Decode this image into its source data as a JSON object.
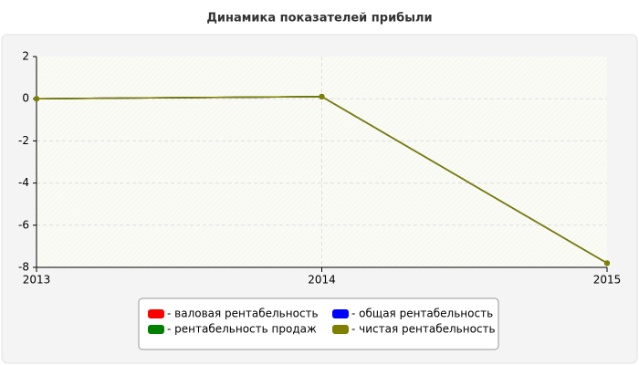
{
  "chart_data": {
    "type": "line",
    "title": "Динамика показателей прибыли",
    "categories": [
      "2013",
      "2014",
      "2015"
    ],
    "series": [
      {
        "name": "- валовая рентабельность",
        "color": "#ff0000",
        "values": [
          0,
          0.1,
          -7.8
        ]
      },
      {
        "name": "- общая рентабельность",
        "color": "#0000ff",
        "values": [
          0,
          0.1,
          -7.8
        ]
      },
      {
        "name": "- рентабельность продаж",
        "color": "#008000",
        "values": [
          0,
          0.1,
          -7.8
        ]
      },
      {
        "name": "- чистая рентабельность",
        "color": "#808000",
        "values": [
          0,
          0.1,
          -7.8
        ]
      }
    ],
    "ylim": [
      -8,
      2
    ],
    "yticks": [
      -8,
      -6,
      -4,
      -2,
      0,
      2
    ],
    "grid": true
  }
}
